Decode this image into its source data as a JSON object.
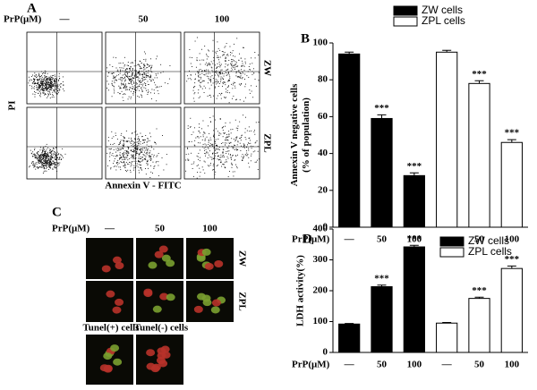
{
  "panel_labels": [
    "A",
    "B",
    "C",
    "D"
  ],
  "panel_a": {
    "row_label": "PrP(μM)",
    "columns": [
      "—",
      "50",
      "100"
    ],
    "rows": [
      "ZW",
      "ZPL"
    ],
    "x_label": "Annexin V - FITC",
    "y_label": "PI"
  },
  "panel_c": {
    "row_label": "PrP(μM)",
    "columns": [
      "—",
      "50",
      "100"
    ],
    "rows": [
      "ZW",
      "ZPL"
    ],
    "captions": [
      "Tunel(+) cells",
      "Tunel(-) cells"
    ]
  },
  "chart_data": [
    {
      "type": "bar",
      "y_label": [
        "Annexin V negative cells",
        "(% of population)"
      ],
      "x_label": "PrP(μM)",
      "categories": [
        "—",
        "50",
        "100",
        "—",
        "50",
        "100"
      ],
      "series": [
        {
          "name": "ZW cells",
          "color": "#000000",
          "values": [
            94,
            59,
            28,
            null,
            null,
            null
          ],
          "errors": [
            1,
            2,
            1.5,
            null,
            null,
            null
          ],
          "value_labels": [
            null,
            "***",
            "***",
            null,
            null,
            null
          ]
        },
        {
          "name": "ZPL cells",
          "color": "#ffffff",
          "values": [
            null,
            null,
            null,
            95,
            78,
            46
          ],
          "errors": [
            null,
            null,
            null,
            1,
            1.5,
            1.5
          ],
          "value_labels": [
            null,
            null,
            null,
            null,
            "***",
            "***"
          ]
        }
      ],
      "ylim": [
        0,
        100
      ],
      "yticks": [
        0,
        20,
        40,
        60,
        80,
        100
      ]
    },
    {
      "type": "bar",
      "y_label": [
        "LDH activity(%)"
      ],
      "x_label": "PrP(μM)",
      "categories": [
        "—",
        "50",
        "100",
        "—",
        "50",
        "100"
      ],
      "series": [
        {
          "name": "ZW cells",
          "color": "#000000",
          "values": [
            92,
            213,
            342,
            null,
            null,
            null
          ],
          "errors": [
            2,
            5,
            5,
            null,
            null,
            null
          ],
          "value_labels": [
            null,
            "***",
            "***",
            null,
            null,
            null
          ]
        },
        {
          "name": "ZPL cells",
          "color": "#ffffff",
          "values": [
            null,
            null,
            null,
            95,
            175,
            272
          ],
          "errors": [
            null,
            null,
            null,
            2,
            4,
            8
          ],
          "value_labels": [
            null,
            null,
            null,
            null,
            "***",
            "***"
          ]
        }
      ],
      "ylim": [
        0,
        400
      ],
      "yticks": [
        0,
        100,
        200,
        300,
        400
      ]
    }
  ]
}
